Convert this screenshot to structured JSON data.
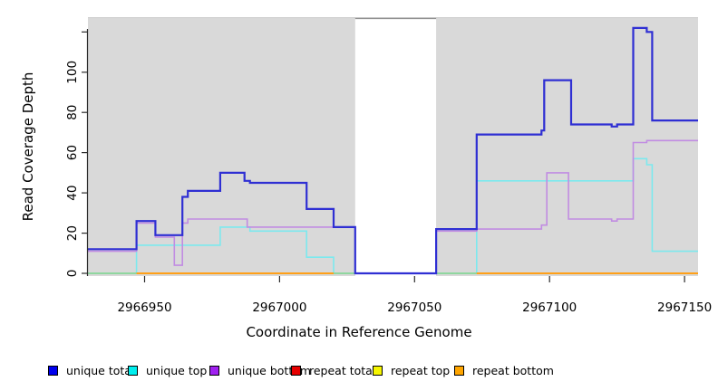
{
  "chart_data": {
    "type": "line",
    "subtype": "step",
    "title": "",
    "xlabel": "Coordinate in Reference Genome",
    "ylabel": "Read Coverage Depth",
    "x_range": [
      2966929,
      2967155
    ],
    "y_axis_max_visible": 127,
    "x_ticks": [
      2966950,
      2967000,
      2967050,
      2967100,
      2967150
    ],
    "y_ticks": [
      0,
      20,
      40,
      60,
      80,
      100
    ],
    "y_extra_unlabeled_tick": 120,
    "panel_background": "#d9d9d9",
    "masked_region": {
      "start": 2967028,
      "end": 2967058,
      "fill": "#ffffff",
      "top_edge_color": "#8f8f8f"
    },
    "series": [
      {
        "name": "unique total",
        "color": "#2f2fd3",
        "points": [
          [
            2966929,
            12
          ],
          [
            2966947,
            26
          ],
          [
            2966954,
            19
          ],
          [
            2966964,
            38
          ],
          [
            2966966,
            41
          ],
          [
            2966978,
            50
          ],
          [
            2966987,
            46
          ],
          [
            2966989,
            45
          ],
          [
            2967010,
            32
          ],
          [
            2967020,
            23
          ],
          [
            2967028,
            0
          ],
          [
            2967058,
            22
          ],
          [
            2967073,
            69
          ],
          [
            2967097,
            71
          ],
          [
            2967098,
            96
          ],
          [
            2967108,
            74
          ],
          [
            2967123,
            73
          ],
          [
            2967125,
            74
          ],
          [
            2967131,
            122
          ],
          [
            2967136,
            120
          ],
          [
            2967138,
            76
          ],
          [
            2967155,
            76
          ]
        ]
      },
      {
        "name": "unique top",
        "color": "#7ce9ee",
        "points": [
          [
            2966929,
            0
          ],
          [
            2966947,
            14
          ],
          [
            2966978,
            23
          ],
          [
            2966989,
            21
          ],
          [
            2967010,
            8
          ],
          [
            2967020,
            0
          ],
          [
            2967073,
            46
          ],
          [
            2967131,
            57
          ],
          [
            2967136,
            54
          ],
          [
            2967138,
            11
          ],
          [
            2967155,
            11
          ]
        ]
      },
      {
        "name": "unique bottom",
        "color": "#c18ce2",
        "points": [
          [
            2966929,
            11
          ],
          [
            2966947,
            25
          ],
          [
            2966954,
            18
          ],
          [
            2966961,
            4
          ],
          [
            2966964,
            25
          ],
          [
            2966966,
            27
          ],
          [
            2966988,
            23
          ],
          [
            2967028,
            0
          ],
          [
            2967058,
            21
          ],
          [
            2967073,
            22
          ],
          [
            2967097,
            24
          ],
          [
            2967099,
            50
          ],
          [
            2967107,
            27
          ],
          [
            2967123,
            26
          ],
          [
            2967125,
            27
          ],
          [
            2967131,
            65
          ],
          [
            2967136,
            66
          ],
          [
            2967155,
            66
          ]
        ]
      },
      {
        "name": "repeat total",
        "color": "#e00000",
        "points": [
          [
            2966929,
            0
          ],
          [
            2967155,
            0
          ]
        ]
      },
      {
        "name": "repeat top",
        "color": "#f0f000",
        "points": [
          [
            2966929,
            0
          ],
          [
            2967155,
            0
          ]
        ]
      },
      {
        "name": "repeat bottom",
        "color": "#ffa018",
        "points": [
          [
            2966929,
            0
          ],
          [
            2967155,
            0
          ]
        ]
      }
    ],
    "baseline_overlap_segments": [
      {
        "from": 2966929,
        "to": 2966947,
        "color": "#8fd79f"
      },
      {
        "from": 2967020,
        "to": 2967028,
        "color": "#8fd79f"
      },
      {
        "from": 2967058,
        "to": 2967073,
        "color": "#8fd79f"
      }
    ],
    "legend": [
      {
        "label": "unique total",
        "color": "#0000ee"
      },
      {
        "label": "unique top",
        "color": "#00eeee"
      },
      {
        "label": "unique bottom",
        "color": "#a020f0"
      },
      {
        "label": "repeat total",
        "color": "#e60000"
      },
      {
        "label": "repeat top",
        "color": "#f5f500"
      },
      {
        "label": "repeat bottom",
        "color": "#ffa500"
      }
    ]
  }
}
